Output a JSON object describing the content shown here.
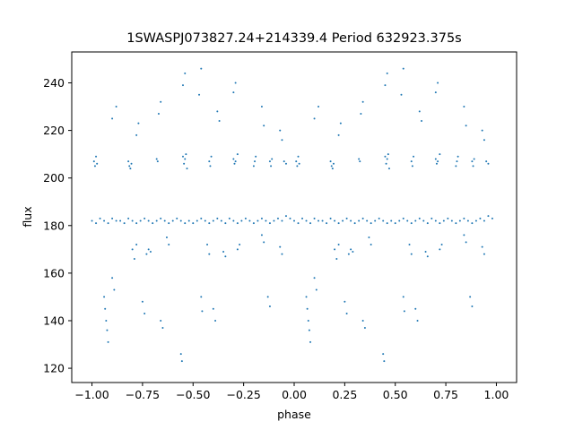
{
  "chart_data": {
    "type": "scatter",
    "title": "1SWASPJ073827.24+214339.4 Period 632923.375s",
    "xlabel": "phase",
    "ylabel": "flux",
    "xlim": [
      -1.1,
      1.1
    ],
    "ylim": [
      114,
      253
    ],
    "x_ticks": [
      -1.0,
      -0.75,
      -0.5,
      -0.25,
      0.0,
      0.25,
      0.5,
      0.75,
      1.0
    ],
    "x_tick_labels": [
      "−1.00",
      "−0.75",
      "−0.50",
      "−0.25",
      "0.00",
      "0.25",
      "0.50",
      "0.75",
      "1.00"
    ],
    "y_ticks": [
      120,
      140,
      160,
      180,
      200,
      220,
      240
    ],
    "y_tick_labels": [
      "120",
      "140",
      "160",
      "180",
      "200",
      "220",
      "240"
    ],
    "grid": false,
    "legend": "none",
    "marker_color": "#1f77b4",
    "series": [
      {
        "points_half": [
          [
            0.0,
            182
          ],
          [
            0.02,
            181
          ],
          [
            0.04,
            183
          ],
          [
            0.06,
            182
          ],
          [
            0.08,
            181
          ],
          [
            0.1,
            183
          ],
          [
            0.12,
            182
          ],
          [
            0.14,
            182
          ],
          [
            0.16,
            181
          ],
          [
            0.18,
            183
          ],
          [
            0.2,
            182
          ],
          [
            0.22,
            181
          ],
          [
            0.24,
            182
          ],
          [
            0.26,
            183
          ],
          [
            0.28,
            182
          ],
          [
            0.3,
            181
          ],
          [
            0.32,
            182
          ],
          [
            0.34,
            183
          ],
          [
            0.36,
            182
          ],
          [
            0.38,
            181
          ],
          [
            0.4,
            182
          ],
          [
            0.42,
            183
          ],
          [
            0.44,
            182
          ],
          [
            0.46,
            181
          ],
          [
            0.48,
            182
          ],
          [
            0.5,
            181
          ],
          [
            0.52,
            182
          ],
          [
            0.54,
            183
          ],
          [
            0.56,
            182
          ],
          [
            0.58,
            181
          ],
          [
            0.6,
            182
          ],
          [
            0.62,
            183
          ],
          [
            0.64,
            182
          ],
          [
            0.66,
            181
          ],
          [
            0.68,
            183
          ],
          [
            0.7,
            182
          ],
          [
            0.72,
            181
          ],
          [
            0.74,
            182
          ],
          [
            0.76,
            183
          ],
          [
            0.78,
            182
          ],
          [
            0.8,
            181
          ],
          [
            0.82,
            182
          ],
          [
            0.84,
            183
          ],
          [
            0.86,
            182
          ],
          [
            0.88,
            181
          ],
          [
            0.9,
            182
          ],
          [
            0.92,
            183
          ],
          [
            0.94,
            182
          ],
          [
            0.96,
            184
          ],
          [
            0.98,
            183
          ],
          [
            0.01,
            207
          ],
          [
            0.015,
            205
          ],
          [
            0.02,
            209
          ],
          [
            0.025,
            206
          ],
          [
            0.18,
            207
          ],
          [
            0.185,
            205
          ],
          [
            0.19,
            204
          ],
          [
            0.195,
            206
          ],
          [
            0.32,
            208
          ],
          [
            0.325,
            207
          ],
          [
            0.45,
            209
          ],
          [
            0.455,
            206
          ],
          [
            0.46,
            208
          ],
          [
            0.465,
            210
          ],
          [
            0.47,
            204
          ],
          [
            0.58,
            207
          ],
          [
            0.585,
            205
          ],
          [
            0.59,
            209
          ],
          [
            0.7,
            208
          ],
          [
            0.705,
            206
          ],
          [
            0.71,
            207
          ],
          [
            0.72,
            210
          ],
          [
            0.8,
            205
          ],
          [
            0.805,
            207
          ],
          [
            0.81,
            209
          ],
          [
            0.88,
            207
          ],
          [
            0.885,
            205
          ],
          [
            0.89,
            208
          ],
          [
            0.95,
            207
          ],
          [
            0.96,
            206
          ],
          [
            0.2,
            170
          ],
          [
            0.21,
            166
          ],
          [
            0.22,
            172
          ],
          [
            0.27,
            168
          ],
          [
            0.28,
            170
          ],
          [
            0.29,
            169
          ],
          [
            0.37,
            175
          ],
          [
            0.38,
            172
          ],
          [
            0.57,
            172
          ],
          [
            0.58,
            168
          ],
          [
            0.65,
            169
          ],
          [
            0.66,
            167
          ],
          [
            0.72,
            170
          ],
          [
            0.73,
            172
          ],
          [
            0.84,
            176
          ],
          [
            0.85,
            173
          ],
          [
            0.93,
            171
          ],
          [
            0.94,
            168
          ],
          [
            0.06,
            150
          ],
          [
            0.065,
            145
          ],
          [
            0.07,
            140
          ],
          [
            0.075,
            136
          ],
          [
            0.08,
            131
          ],
          [
            0.1,
            158
          ],
          [
            0.11,
            153
          ],
          [
            0.25,
            148
          ],
          [
            0.26,
            143
          ],
          [
            0.34,
            140
          ],
          [
            0.35,
            137
          ],
          [
            0.44,
            126
          ],
          [
            0.445,
            123
          ],
          [
            0.54,
            150
          ],
          [
            0.545,
            144
          ],
          [
            0.6,
            145
          ],
          [
            0.61,
            140
          ],
          [
            0.87,
            150
          ],
          [
            0.88,
            146
          ],
          [
            0.1,
            225
          ],
          [
            0.12,
            230
          ],
          [
            0.22,
            218
          ],
          [
            0.23,
            223
          ],
          [
            0.33,
            227
          ],
          [
            0.34,
            232
          ],
          [
            0.45,
            239
          ],
          [
            0.46,
            244
          ],
          [
            0.53,
            235
          ],
          [
            0.54,
            246
          ],
          [
            0.62,
            228
          ],
          [
            0.63,
            224
          ],
          [
            0.7,
            236
          ],
          [
            0.71,
            240
          ],
          [
            0.84,
            230
          ],
          [
            0.85,
            222
          ],
          [
            0.93,
            220
          ],
          [
            0.94,
            216
          ]
        ]
      }
    ]
  }
}
